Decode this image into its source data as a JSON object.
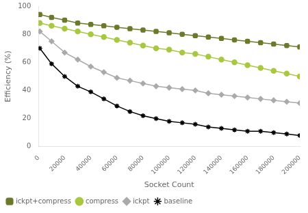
{
  "chart_data": {
    "type": "line",
    "x": [
      1000,
      10000,
      20000,
      30000,
      40000,
      50000,
      60000,
      70000,
      80000,
      90000,
      100000,
      110000,
      120000,
      130000,
      140000,
      150000,
      160000,
      170000,
      180000,
      190000,
      200000
    ],
    "series": [
      {
        "name": "ickpt+compress",
        "color": "#6b7a2a",
        "marker": "pentagon",
        "values": [
          94,
          92,
          90,
          88,
          87,
          86,
          85,
          84,
          83,
          82,
          81,
          80,
          79,
          78,
          77,
          76,
          75,
          74,
          73,
          72,
          71
        ]
      },
      {
        "name": "compress",
        "color": "#a8c840",
        "marker": "circle",
        "values": [
          88,
          86,
          84,
          82,
          80,
          78,
          76,
          74,
          72,
          70,
          69,
          67,
          66,
          64,
          62,
          60,
          58,
          56,
          54,
          52,
          50
        ]
      },
      {
        "name": "ickpt",
        "color": "#aaaaaa",
        "marker": "diamond",
        "values": [
          82,
          75,
          67,
          62,
          57,
          53,
          49,
          47,
          45,
          43,
          42,
          41,
          40,
          38,
          37,
          36,
          35,
          34,
          33,
          32,
          31
        ]
      },
      {
        "name": "baseline",
        "color": "#000000",
        "marker": "star",
        "values": [
          70,
          59,
          50,
          43,
          39,
          34,
          29,
          25,
          22,
          20,
          18,
          17,
          16,
          14,
          13,
          12,
          11,
          11,
          10,
          9,
          8
        ]
      }
    ],
    "x_label": "Socket Count",
    "y_label": "Efficiency (%)",
    "xlim": [
      0,
      200000
    ],
    "ylim": [
      0,
      100
    ],
    "xticks": [
      0,
      20000,
      40000,
      60000,
      80000,
      100000,
      120000,
      140000,
      160000,
      180000,
      200000
    ],
    "yticks": [
      0,
      20,
      40,
      60,
      80,
      100
    ],
    "grid": false,
    "legend": "lower left"
  }
}
